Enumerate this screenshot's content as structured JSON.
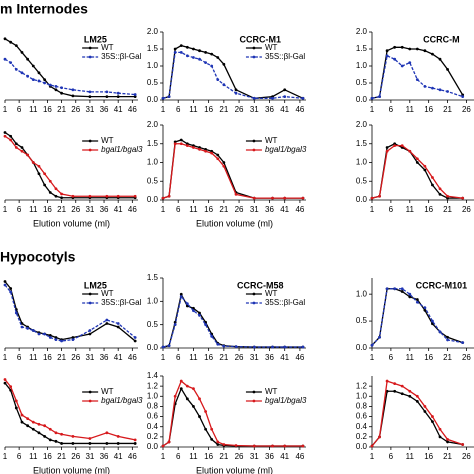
{
  "sections": [
    "m Internodes",
    "Hypocotyls"
  ],
  "chart_data": [
    {
      "type": "line",
      "title": "LM25",
      "x": [
        1,
        3,
        5,
        7,
        9,
        11,
        13,
        15,
        17,
        19,
        21,
        25,
        31,
        37,
        41,
        47
      ],
      "xlim": [
        1,
        48
      ],
      "xticks": [
        1,
        6,
        11,
        16,
        21,
        26,
        31,
        36,
        41,
        46
      ],
      "ylim": [
        0,
        1
      ],
      "series": [
        {
          "name": "WT",
          "color": "#000000",
          "dash": false,
          "values": [
            0.9,
            0.85,
            0.8,
            0.7,
            0.6,
            0.5,
            0.4,
            0.3,
            0.2,
            0.15,
            0.1,
            0.06,
            0.05,
            0.05,
            0.05,
            0.05
          ]
        },
        {
          "name": "35S::βl-Gal",
          "color": "#1f35b5",
          "dash": true,
          "values": [
            0.6,
            0.55,
            0.45,
            0.4,
            0.35,
            0.3,
            0.28,
            0.25,
            0.22,
            0.2,
            0.18,
            0.15,
            0.12,
            0.12,
            0.1,
            0.08
          ]
        }
      ]
    },
    {
      "type": "line",
      "title": "CCRC-M1",
      "x": [
        1,
        3,
        5,
        7,
        9,
        11,
        13,
        15,
        17,
        19,
        21,
        25,
        31,
        37,
        41,
        47
      ],
      "xlim": [
        1,
        48
      ],
      "xticks": [
        1,
        6,
        11,
        16,
        21,
        26,
        31,
        36,
        41,
        46
      ],
      "ylim": [
        0,
        2
      ],
      "yticks": [
        {
          "value": 0,
          "label": "0.0"
        },
        0.5,
        {
          "value": 1,
          "label": "1.0"
        },
        1.5,
        {
          "value": 2,
          "label": "2.0"
        }
      ],
      "series": [
        {
          "name": "WT",
          "color": "#000000",
          "dash": false,
          "values": [
            0.05,
            0.1,
            1.5,
            1.6,
            1.55,
            1.5,
            1.45,
            1.4,
            1.35,
            1.25,
            1.05,
            0.3,
            0.05,
            0.1,
            0.3,
            0.05
          ]
        },
        {
          "name": "35S::βl-Gal",
          "color": "#1f35b5",
          "dash": true,
          "values": [
            0.05,
            0.1,
            1.4,
            1.4,
            1.3,
            1.25,
            1.2,
            1.1,
            1.0,
            0.6,
            0.45,
            0.2,
            0.05,
            0.05,
            0.1,
            0.05
          ]
        }
      ]
    },
    {
      "type": "line",
      "title": "CCRC-M",
      "x": [
        1,
        3,
        5,
        7,
        9,
        11,
        13,
        15,
        17,
        19,
        21,
        25
      ],
      "xlim": [
        1,
        28
      ],
      "xticks": [
        1,
        6,
        11,
        16,
        21,
        26
      ],
      "ylim": [
        0,
        2
      ],
      "yticks": [
        {
          "value": 0,
          "label": "0.0"
        },
        0.5,
        {
          "value": 1,
          "label": "1.0"
        },
        1.5,
        {
          "value": 2,
          "label": "2.0"
        }
      ],
      "series": [
        {
          "color": "#000000",
          "dash": false,
          "values": [
            0.05,
            0.1,
            1.45,
            1.55,
            1.55,
            1.5,
            1.5,
            1.45,
            1.35,
            1.2,
            0.9,
            0.15
          ]
        },
        {
          "color": "#1f35b5",
          "dash": true,
          "values": [
            0.05,
            0.1,
            1.3,
            1.2,
            1.0,
            1.1,
            0.6,
            0.4,
            0.35,
            0.3,
            0.25,
            0.1
          ]
        }
      ]
    },
    {
      "type": "line",
      "x": [
        1,
        3,
        5,
        7,
        9,
        11,
        13,
        15,
        17,
        19,
        21,
        25,
        31,
        37,
        41,
        47
      ],
      "xlim": [
        1,
        48
      ],
      "xticks": [
        1,
        6,
        11,
        16,
        21,
        26,
        31,
        36,
        41,
        46
      ],
      "ylim": [
        0,
        1
      ],
      "xlabel": "Elution volume (ml)",
      "series": [
        {
          "name": "WT",
          "color": "#000000",
          "dash": false,
          "values": [
            0.9,
            0.85,
            0.75,
            0.7,
            0.6,
            0.5,
            0.35,
            0.2,
            0.1,
            0.05,
            0.03,
            0.03,
            0.03,
            0.03,
            0.03,
            0.03
          ]
        },
        {
          "name": "bgal1/bgal3",
          "color": "#d7191c",
          "dash": false,
          "font_style": "italic",
          "values": [
            0.85,
            0.8,
            0.7,
            0.65,
            0.6,
            0.5,
            0.45,
            0.35,
            0.25,
            0.15,
            0.08,
            0.05,
            0.05,
            0.05,
            0.05,
            0.05
          ]
        }
      ]
    },
    {
      "type": "line",
      "x": [
        1,
        3,
        5,
        7,
        9,
        11,
        13,
        15,
        17,
        19,
        21,
        25,
        31,
        37,
        41,
        47
      ],
      "xlim": [
        1,
        48
      ],
      "xticks": [
        1,
        6,
        11,
        16,
        21,
        26,
        31,
        36,
        41,
        46
      ],
      "ylim": [
        0,
        2
      ],
      "yticks": [
        {
          "value": 0,
          "label": "0.0"
        },
        0.5,
        {
          "value": 1,
          "label": "1.0"
        },
        1.5,
        {
          "value": 2,
          "label": "2.0"
        }
      ],
      "xlabel": "Elution volume (ml)",
      "series": [
        {
          "name": "WT",
          "color": "#000000",
          "dash": false,
          "values": [
            0.05,
            0.1,
            1.55,
            1.6,
            1.5,
            1.45,
            1.4,
            1.35,
            1.3,
            1.2,
            1.0,
            0.2,
            0.05,
            0.05,
            0.05,
            0.05
          ]
        },
        {
          "name": "bgal1/bgal3",
          "color": "#d7191c",
          "dash": false,
          "font_style": "italic",
          "values": [
            0.05,
            0.1,
            1.5,
            1.5,
            1.45,
            1.4,
            1.35,
            1.3,
            1.25,
            1.1,
            0.9,
            0.15,
            0.05,
            0.05,
            0.05,
            0.05
          ]
        }
      ]
    },
    {
      "type": "line",
      "x": [
        1,
        3,
        5,
        7,
        9,
        11,
        13,
        15,
        17,
        19,
        21,
        25
      ],
      "xlim": [
        1,
        28
      ],
      "xticks": [
        1,
        6,
        11,
        16,
        21,
        26
      ],
      "ylim": [
        0,
        2
      ],
      "yticks": [
        {
          "value": 0,
          "label": "0.0"
        },
        0.5,
        {
          "value": 1,
          "label": "1.0"
        },
        1.5,
        {
          "value": 2,
          "label": "2.0"
        }
      ],
      "series": [
        {
          "color": "#000000",
          "dash": false,
          "values": [
            0.05,
            0.1,
            1.4,
            1.5,
            1.4,
            1.3,
            1.0,
            0.8,
            0.4,
            0.15,
            0.05,
            0.05
          ]
        },
        {
          "color": "#d7191c",
          "dash": false,
          "values": [
            0.05,
            0.1,
            1.3,
            1.45,
            1.45,
            1.3,
            1.1,
            0.9,
            0.6,
            0.3,
            0.1,
            0.05
          ]
        }
      ]
    },
    {
      "type": "line",
      "title": "LM25",
      "x": [
        1,
        3,
        5,
        7,
        9,
        11,
        13,
        15,
        17,
        19,
        21,
        25,
        31,
        37,
        41,
        47
      ],
      "xlim": [
        1,
        48
      ],
      "xticks": [
        1,
        6,
        11,
        16,
        21,
        26,
        31,
        36,
        41,
        46
      ],
      "ylim": [
        0,
        1
      ],
      "series": [
        {
          "name": "WT",
          "color": "#000000",
          "dash": false,
          "values": [
            0.95,
            0.85,
            0.55,
            0.35,
            0.3,
            0.25,
            0.22,
            0.2,
            0.18,
            0.15,
            0.12,
            0.15,
            0.2,
            0.35,
            0.3,
            0.1
          ]
        },
        {
          "name": "35S::βl-Gal",
          "color": "#1f35b5",
          "dash": true,
          "values": [
            0.9,
            0.8,
            0.5,
            0.3,
            0.28,
            0.25,
            0.2,
            0.2,
            0.15,
            0.12,
            0.1,
            0.12,
            0.25,
            0.4,
            0.35,
            0.15
          ]
        }
      ]
    },
    {
      "type": "line",
      "title": "CCRC-M58",
      "x": [
        1,
        3,
        5,
        7,
        9,
        11,
        13,
        15,
        17,
        19,
        21,
        25,
        31,
        37,
        41,
        47
      ],
      "xlim": [
        1,
        48
      ],
      "xticks": [
        1,
        6,
        11,
        16,
        21,
        26,
        31,
        36,
        41,
        46
      ],
      "ylim": [
        0,
        1.5
      ],
      "yticks": [
        {
          "value": 0,
          "label": "0.0"
        },
        0.5,
        {
          "value": 1,
          "label": "1.0"
        },
        1.5
      ],
      "series": [
        {
          "name": "WT",
          "color": "#000000",
          "dash": false,
          "values": [
            0.02,
            0.05,
            0.55,
            1.15,
            0.9,
            0.85,
            0.75,
            0.55,
            0.3,
            0.1,
            0.05,
            0.03,
            0.02,
            0.02,
            0.02,
            0.02
          ]
        },
        {
          "name": "35S::βl-Gal",
          "color": "#1f35b5",
          "dash": true,
          "values": [
            0.02,
            0.05,
            0.5,
            1.1,
            0.95,
            0.8,
            0.7,
            0.5,
            0.25,
            0.08,
            0.04,
            0.03,
            0.02,
            0.02,
            0.02,
            0.02
          ]
        }
      ]
    },
    {
      "type": "line",
      "title": "CCRC-M101",
      "x": [
        1,
        3,
        5,
        7,
        9,
        11,
        13,
        15,
        17,
        19,
        21,
        25
      ],
      "xlim": [
        1,
        28
      ],
      "xticks": [
        1,
        6,
        11,
        16,
        21,
        26
      ],
      "ylim": [
        0,
        1.3
      ],
      "yticks": [
        {
          "value": 0,
          "label": "0.0"
        },
        0.5,
        {
          "value": 1,
          "label": "1.0"
        }
      ],
      "series": [
        {
          "color": "#000000",
          "dash": false,
          "values": [
            0.05,
            0.2,
            1.1,
            1.1,
            1.05,
            0.95,
            0.9,
            0.7,
            0.45,
            0.3,
            0.2,
            0.1
          ]
        },
        {
          "color": "#1f35b5",
          "dash": true,
          "values": [
            0.05,
            0.2,
            1.1,
            1.1,
            1.1,
            1.0,
            0.85,
            0.75,
            0.5,
            0.3,
            0.15,
            0.1
          ]
        }
      ]
    },
    {
      "type": "line",
      "x": [
        1,
        3,
        5,
        7,
        9,
        11,
        13,
        15,
        17,
        19,
        21,
        25,
        31,
        37,
        41,
        47
      ],
      "xlim": [
        1,
        48
      ],
      "xticks": [
        1,
        6,
        11,
        16,
        21,
        26,
        31,
        36,
        41,
        46
      ],
      "ylim": [
        0,
        1
      ],
      "xlabel": "Elution volume (ml)",
      "series": [
        {
          "name": "WT",
          "color": "#000000",
          "dash": false,
          "values": [
            0.9,
            0.8,
            0.55,
            0.35,
            0.3,
            0.25,
            0.2,
            0.15,
            0.1,
            0.08,
            0.05,
            0.05,
            0.05,
            0.05,
            0.05,
            0.05
          ]
        },
        {
          "name": "bgal1/bgal3",
          "color": "#d7191c",
          "dash": false,
          "font_style": "italic",
          "values": [
            0.95,
            0.85,
            0.65,
            0.45,
            0.4,
            0.35,
            0.32,
            0.3,
            0.25,
            0.2,
            0.18,
            0.15,
            0.12,
            0.2,
            0.15,
            0.1
          ]
        }
      ]
    },
    {
      "type": "line",
      "x": [
        1,
        3,
        5,
        7,
        9,
        11,
        13,
        15,
        17,
        19,
        21,
        25,
        31,
        37,
        41,
        47
      ],
      "xlim": [
        1,
        48
      ],
      "xticks": [
        1,
        6,
        11,
        16,
        21,
        26,
        31,
        36,
        41,
        46
      ],
      "ylim": [
        0,
        1.4
      ],
      "yticks": [
        {
          "value": 0,
          "label": "0.0"
        },
        0.2,
        0.4,
        0.6,
        0.8,
        {
          "value": 1,
          "label": "1.0"
        },
        1.2,
        1.4
      ],
      "xlabel": "Elution volume (ml)",
      "series": [
        {
          "name": "WT",
          "color": "#000000",
          "dash": false,
          "values": [
            0.02,
            0.1,
            0.85,
            1.15,
            0.95,
            0.8,
            0.6,
            0.35,
            0.15,
            0.05,
            0.03,
            0.02,
            0.02,
            0.02,
            0.02,
            0.02
          ]
        },
        {
          "name": "bgal1/bgal3",
          "color": "#d7191c",
          "dash": false,
          "font_style": "italic",
          "values": [
            0.02,
            0.1,
            1.0,
            1.3,
            1.2,
            1.15,
            0.95,
            0.7,
            0.35,
            0.1,
            0.05,
            0.03,
            0.02,
            0.02,
            0.02,
            0.02
          ]
        }
      ]
    },
    {
      "type": "line",
      "x": [
        1,
        3,
        5,
        7,
        9,
        11,
        13,
        15,
        17,
        19,
        21,
        25
      ],
      "xlim": [
        1,
        28
      ],
      "xticks": [
        1,
        6,
        11,
        16,
        21,
        26
      ],
      "ylim": [
        0,
        1.4
      ],
      "yticks": [
        {
          "value": 0,
          "label": "0.0"
        },
        0.2,
        0.4,
        0.6,
        0.8,
        {
          "value": 1,
          "label": "1.0"
        },
        1.2
      ],
      "series": [
        {
          "color": "#000000",
          "dash": false,
          "values": [
            0.02,
            0.2,
            1.1,
            1.1,
            1.05,
            1.0,
            0.9,
            0.7,
            0.5,
            0.2,
            0.1,
            0.05
          ]
        },
        {
          "color": "#d7191c",
          "dash": false,
          "values": [
            0.02,
            0.2,
            1.3,
            1.25,
            1.2,
            1.1,
            1.0,
            0.8,
            0.6,
            0.35,
            0.15,
            0.05
          ]
        }
      ]
    }
  ]
}
